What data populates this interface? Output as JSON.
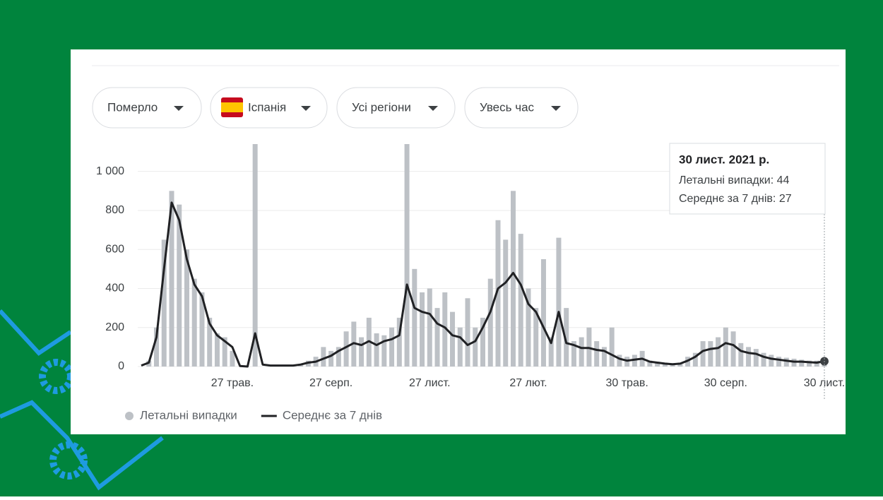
{
  "filters": {
    "metric": "Померло",
    "country": "Іспанія",
    "region": "Усі регіони",
    "period": "Увесь час"
  },
  "chart_data": {
    "type": "bar",
    "categories": [
      null,
      null,
      null,
      null,
      null,
      null,
      null,
      null,
      null,
      null,
      null,
      null,
      "27 трав.",
      null,
      null,
      null,
      null,
      null,
      null,
      null,
      null,
      null,
      null,
      null,
      null,
      "27 серп.",
      null,
      null,
      null,
      null,
      null,
      null,
      null,
      null,
      null,
      null,
      null,
      null,
      "27 лист.",
      null,
      null,
      null,
      null,
      null,
      null,
      null,
      null,
      null,
      null,
      null,
      null,
      "27 лют.",
      null,
      null,
      null,
      null,
      null,
      null,
      null,
      null,
      null,
      null,
      null,
      null,
      "30 трав.",
      null,
      null,
      null,
      null,
      null,
      null,
      null,
      null,
      null,
      null,
      null,
      null,
      "30 серп.",
      null,
      null,
      null,
      null,
      null,
      null,
      null,
      null,
      null,
      null,
      null,
      null,
      "30 лист."
    ],
    "series": [
      {
        "name": "Летальні випадки",
        "type": "bar",
        "color": "#bdc1c6",
        "values": [
          0,
          30,
          200,
          650,
          900,
          830,
          600,
          450,
          380,
          250,
          170,
          150,
          80,
          0,
          0,
          1140,
          0,
          5,
          5,
          5,
          5,
          10,
          30,
          50,
          100,
          80,
          100,
          180,
          230,
          150,
          250,
          170,
          160,
          200,
          250,
          1140,
          500,
          380,
          400,
          300,
          380,
          280,
          200,
          350,
          200,
          250,
          450,
          750,
          650,
          900,
          680,
          400,
          300,
          550,
          150,
          660,
          300,
          130,
          150,
          200,
          130,
          100,
          200,
          60,
          50,
          60,
          80,
          30,
          25,
          20,
          15,
          20,
          50,
          70,
          130,
          130,
          150,
          200,
          180,
          120,
          100,
          90,
          70,
          60,
          50,
          45,
          40,
          35,
          30,
          30,
          44
        ]
      },
      {
        "name": "Середнє за 7 днів",
        "type": "line",
        "color": "#202124",
        "values": [
          5,
          20,
          150,
          500,
          840,
          750,
          550,
          420,
          360,
          220,
          160,
          130,
          100,
          3,
          0,
          170,
          10,
          5,
          5,
          5,
          5,
          10,
          20,
          25,
          40,
          55,
          80,
          100,
          120,
          110,
          130,
          110,
          130,
          140,
          160,
          420,
          300,
          280,
          270,
          220,
          200,
          160,
          150,
          110,
          130,
          200,
          280,
          400,
          430,
          480,
          420,
          320,
          280,
          200,
          120,
          280,
          120,
          110,
          95,
          95,
          85,
          80,
          60,
          40,
          30,
          35,
          40,
          25,
          20,
          15,
          12,
          15,
          30,
          50,
          80,
          90,
          95,
          120,
          110,
          80,
          70,
          65,
          50,
          40,
          35,
          30,
          25,
          25,
          22,
          20,
          27
        ]
      }
    ],
    "ylim": [
      0,
      1140
    ],
    "yticks": [
      0,
      200,
      400,
      600,
      800,
      {
        "value": 1000,
        "label": "1 000"
      }
    ],
    "grid": true,
    "legend": "bottom"
  },
  "tooltip": {
    "title": "30 лист. 2021 р.",
    "lines": [
      "Летальні випадки: 44",
      "Середнє за 7 днів: 27"
    ]
  }
}
